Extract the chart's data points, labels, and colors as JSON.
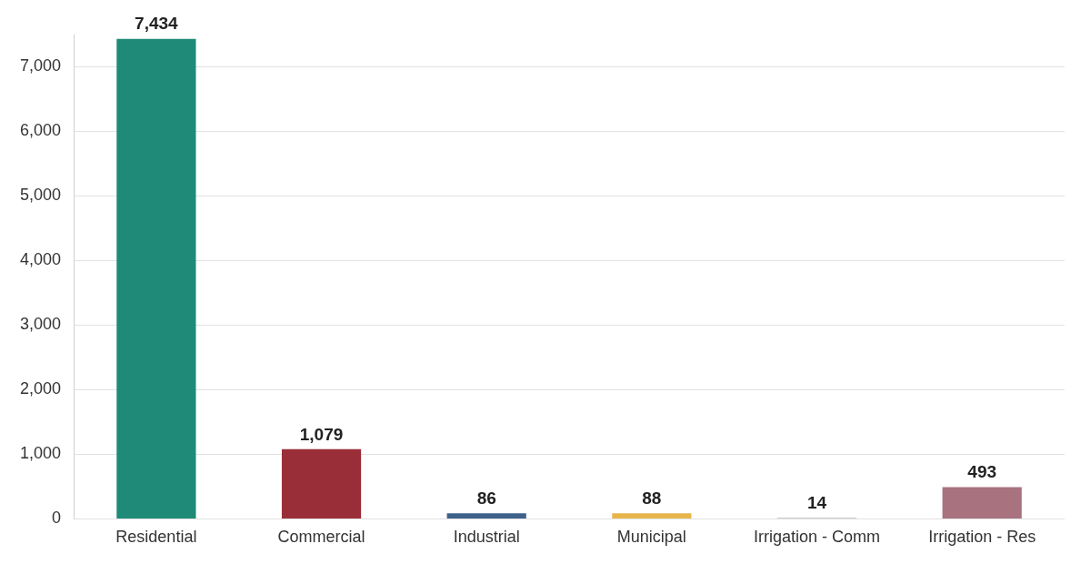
{
  "chart_data": {
    "type": "bar",
    "categories": [
      "Residential",
      "Commercial",
      "Industrial",
      "Municipal",
      "Irrigation - Comm",
      "Irrigation - Res"
    ],
    "values": [
      7434,
      1079,
      86,
      88,
      14,
      493
    ],
    "colors": [
      "#1f8a78",
      "#9a2e38",
      "#3e6189",
      "#e8b54c",
      "#9a9a9a",
      "#a8727f"
    ],
    "value_labels": [
      "7,434",
      "1,079",
      "86",
      "88",
      "14",
      "493"
    ],
    "ylim": [
      0,
      7500
    ],
    "yticks": [
      0,
      {
        "value": 1000,
        "label": "1,000"
      },
      {
        "value": 2000,
        "label": "2,000"
      },
      {
        "value": 3000,
        "label": "3,000"
      },
      {
        "value": 4000,
        "label": "4,000"
      },
      {
        "value": 5000,
        "label": "5,000"
      },
      {
        "value": 6000,
        "label": "6,000"
      },
      {
        "value": 7000,
        "label": "7,000"
      }
    ],
    "grid": "y",
    "legend": false
  }
}
